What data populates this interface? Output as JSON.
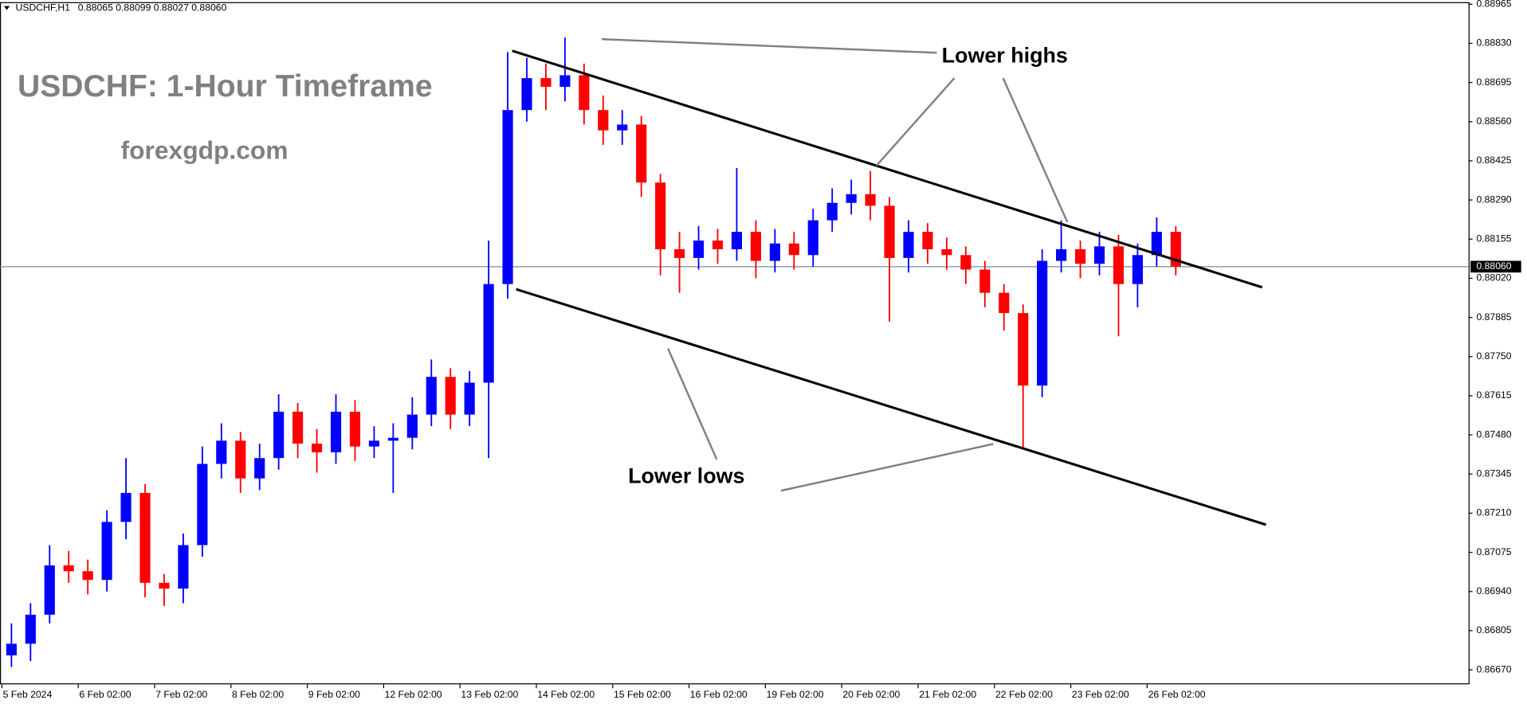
{
  "chart_data": {
    "type": "candlestick",
    "symbol": "USDCHF,H1",
    "ohlc_info": "0.88065 0.88099 0.88027 0.88060",
    "title": "USDCHF: 1-Hour Timeframe",
    "subtitle": "forexgdp.com",
    "annotations": [
      "Lower highs",
      "Lower lows"
    ],
    "up_color": "#0000ff",
    "down_color": "#ff0000",
    "xlim": [
      -0.1,
      76.84
    ],
    "xticks": [
      {
        "value": 0,
        "label": "5 Feb 2024"
      },
      {
        "value": 4,
        "label": "6 Feb 02:00"
      },
      {
        "value": 8,
        "label": "7 Feb 02:00"
      },
      {
        "value": 12,
        "label": "8 Feb 02:00"
      },
      {
        "value": 16,
        "label": "9 Feb 02:00"
      },
      {
        "value": 20,
        "label": "12 Feb 02:00"
      },
      {
        "value": 24,
        "label": "13 Feb 02:00"
      },
      {
        "value": 28,
        "label": "14 Feb 02:00"
      },
      {
        "value": 32,
        "label": "15 Feb 02:00"
      },
      {
        "value": 36,
        "label": "16 Feb 02:00"
      },
      {
        "value": 40,
        "label": "19 Feb 02:00"
      },
      {
        "value": 44,
        "label": "20 Feb 02:00"
      },
      {
        "value": 48,
        "label": "21 Feb 02:00"
      },
      {
        "value": 52,
        "label": "22 Feb 02:00"
      },
      {
        "value": 56,
        "label": "23 Feb 02:00"
      },
      {
        "value": 60,
        "label": "26 Feb 02:00"
      }
    ],
    "ylim": [
      0.8662,
      0.88972
    ],
    "yticks": [
      {
        "value": 0.8667,
        "label": "0.86670"
      },
      {
        "value": 0.86805,
        "label": "0.86805"
      },
      {
        "value": 0.8694,
        "label": "0.86940"
      },
      {
        "value": 0.87075,
        "label": "0.87075"
      },
      {
        "value": 0.8721,
        "label": "0.87210"
      },
      {
        "value": 0.87345,
        "label": "0.87345"
      },
      {
        "value": 0.8748,
        "label": "0.87480"
      },
      {
        "value": 0.87615,
        "label": "0.87615"
      },
      {
        "value": 0.8775,
        "label": "0.87750"
      },
      {
        "value": 0.87885,
        "label": "0.87885"
      },
      {
        "value": 0.8802,
        "label": "0.88020"
      },
      {
        "value": 0.88155,
        "label": "0.88155"
      },
      {
        "value": 0.8829,
        "label": "0.88290"
      },
      {
        "value": 0.88425,
        "label": "0.88425"
      },
      {
        "value": 0.8856,
        "label": "0.88560"
      },
      {
        "value": 0.88695,
        "label": "0.88695"
      },
      {
        "value": 0.8883,
        "label": "0.88830"
      },
      {
        "value": 0.88965,
        "label": "0.88965"
      }
    ],
    "current_price": {
      "value": 0.8806,
      "label": "0.88060"
    },
    "open": [
      0.8672,
      0.8676,
      0.8686,
      0.8703,
      0.8701,
      0.8698,
      0.8718,
      0.8728,
      0.8697,
      0.8695,
      0.871,
      0.8738,
      0.8746,
      0.8733,
      0.874,
      0.8756,
      0.8745,
      0.8742,
      0.8756,
      0.8744,
      0.8746,
      0.8747,
      0.8755,
      0.8768,
      0.8755,
      0.8766,
      0.88,
      0.886,
      0.8871,
      0.8868,
      0.8872,
      0.886,
      0.8853,
      0.8855,
      0.8835,
      0.8812,
      0.8809,
      0.8815,
      0.8812,
      0.8818,
      0.8808,
      0.8814,
      0.881,
      0.8822,
      0.8828,
      0.8831,
      0.8827,
      0.8809,
      0.8818,
      0.8812,
      0.881,
      0.8805,
      0.8797,
      0.879,
      0.8765,
      0.8808,
      0.8812,
      0.8807,
      0.8813,
      0.88,
      0.881,
      0.8818
    ],
    "high": [
      0.8683,
      0.869,
      0.871,
      0.8708,
      0.8705,
      0.8722,
      0.874,
      0.8731,
      0.87,
      0.8714,
      0.8744,
      0.8752,
      0.8749,
      0.8745,
      0.8762,
      0.8759,
      0.875,
      0.8762,
      0.876,
      0.8751,
      0.8752,
      0.8761,
      0.8774,
      0.8771,
      0.877,
      0.8815,
      0.888,
      0.8878,
      0.8876,
      0.8885,
      0.8876,
      0.8865,
      0.886,
      0.8858,
      0.8838,
      0.8818,
      0.882,
      0.8819,
      0.884,
      0.8822,
      0.8819,
      0.8818,
      0.8826,
      0.8833,
      0.8836,
      0.8839,
      0.883,
      0.8822,
      0.8821,
      0.8816,
      0.8813,
      0.8808,
      0.88,
      0.8793,
      0.8812,
      0.8822,
      0.8815,
      0.8818,
      0.8817,
      0.8814,
      0.8823,
      0.882
    ],
    "low": [
      0.8668,
      0.867,
      0.8683,
      0.8697,
      0.8693,
      0.8694,
      0.8712,
      0.8692,
      0.8689,
      0.869,
      0.8706,
      0.8733,
      0.8728,
      0.8729,
      0.8736,
      0.874,
      0.8735,
      0.8738,
      0.8739,
      0.874,
      0.8728,
      0.8743,
      0.8751,
      0.875,
      0.8751,
      0.874,
      0.8795,
      0.8856,
      0.886,
      0.8863,
      0.8855,
      0.8848,
      0.8848,
      0.883,
      0.8803,
      0.8797,
      0.8805,
      0.8807,
      0.8808,
      0.8802,
      0.8804,
      0.8805,
      0.8806,
      0.8818,
      0.8824,
      0.8822,
      0.8787,
      0.8804,
      0.8807,
      0.8805,
      0.88,
      0.8792,
      0.8784,
      0.8743,
      0.8761,
      0.8804,
      0.8802,
      0.8803,
      0.8782,
      0.8792,
      0.8806,
      0.8803
    ],
    "close": [
      0.8676,
      0.8686,
      0.8703,
      0.8701,
      0.8698,
      0.8718,
      0.8728,
      0.8697,
      0.8695,
      0.871,
      0.8738,
      0.8746,
      0.8733,
      0.874,
      0.8756,
      0.8745,
      0.8742,
      0.8756,
      0.8744,
      0.8746,
      0.8747,
      0.8755,
      0.8768,
      0.8755,
      0.8766,
      0.88,
      0.886,
      0.8871,
      0.8868,
      0.8872,
      0.886,
      0.8853,
      0.8855,
      0.8835,
      0.8812,
      0.8809,
      0.8815,
      0.8812,
      0.8818,
      0.8808,
      0.8814,
      0.881,
      0.8822,
      0.8828,
      0.8831,
      0.8827,
      0.8809,
      0.8818,
      0.8812,
      0.881,
      0.8805,
      0.8797,
      0.879,
      0.8765,
      0.8808,
      0.8812,
      0.8807,
      0.8813,
      0.88,
      0.881,
      0.8818,
      0.8806
    ]
  }
}
